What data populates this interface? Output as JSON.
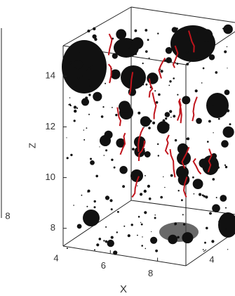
{
  "chart_data": [
    {
      "type": "3d-scatter",
      "xticks": [
        8
      ]
    },
    {
      "type": "3d-scatter",
      "xlabel": "X",
      "zlabel": "Z",
      "xlim": [
        4,
        9.2
      ],
      "xticks": [
        4,
        6,
        8
      ],
      "yticks": [
        4
      ],
      "zlim": [
        7.3,
        15.2
      ],
      "zticks": [
        8,
        10,
        12,
        14
      ],
      "color": "#111111",
      "accent": "#c0141c"
    }
  ]
}
